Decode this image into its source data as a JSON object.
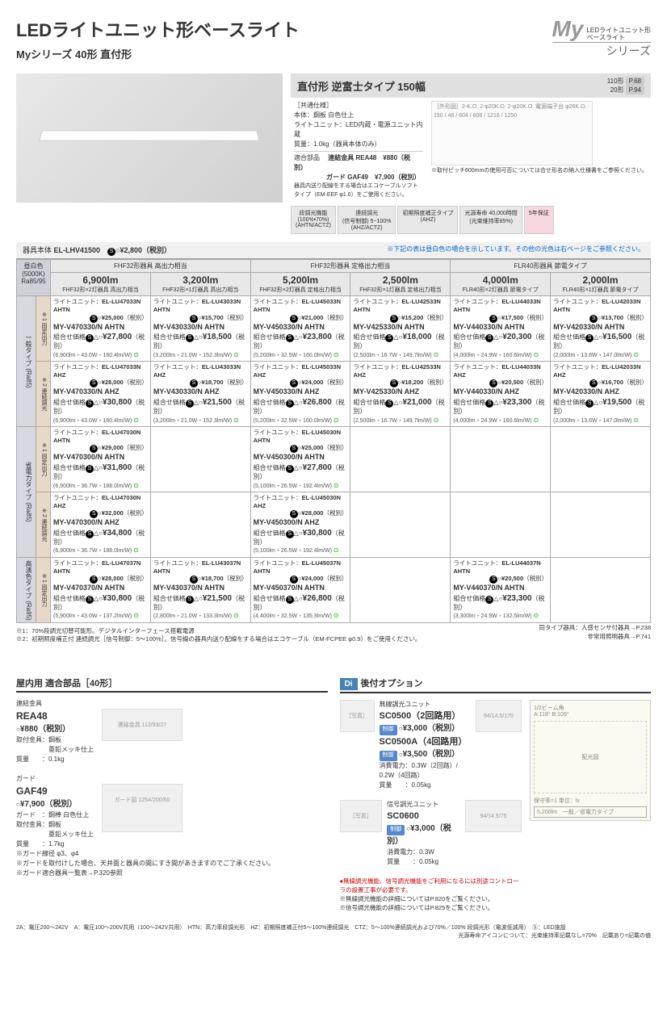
{
  "header": {
    "title": "LEDライトユニット形ベースライト",
    "subtitle": "Myシリーズ 40形 直付形",
    "logo_my": "My",
    "logo_sub1": "LEDライトユニット形",
    "logo_sub2": "ベースライト",
    "logo_series": "シリーズ"
  },
  "spec": {
    "title": "直付形 逆富士タイプ 150幅",
    "ref110": "110形",
    "ref110_page": "P.68",
    "ref20": "20形",
    "ref20_page": "P.94",
    "common_label": "［共通仕様］",
    "body_label": "本体",
    "body_val": "：鋼板 白色仕上",
    "unit_label": "ライトユニット",
    "unit_val": "：LED内蔵・電源ユニット内蔵",
    "mass_label": "質量",
    "mass_val": "：1.0kg（器具本体のみ）",
    "parts_label": "適合部品",
    "parts_val1": "連結金具 REA48",
    "parts_price1": "¥880（税別）",
    "parts_val2": "ガード GAF49",
    "parts_price2": "¥7,900（税別）",
    "wiring_note": "器具内送り配線をする場合はエコケーブルソフトタイプ（EM-EEF φ1.6）をご使用ください。",
    "diagram_note": "※取付ピッチ600mmの使用可否については合せ形名の納入仕様書をご参照ください。",
    "badge1_t": "段調光機能",
    "badge1_s": "(100%•70%)",
    "badge1_n": "(AHTN/ACTZ)",
    "badge2_t": "連続調光",
    "badge2_s": "(信号制御) 5~100%",
    "badge2_n": "(AHZ/ACTZ)",
    "badge3_t": "初期照度補正タイプ",
    "badge3_n": "(AHZ)",
    "badge4_t": "光源寿命 40,000時間",
    "badge4_s": "(光束維持率85%)",
    "badge5": "5年保証"
  },
  "fixture": {
    "label": "器具本体",
    "model": "EL-LHV41500",
    "price": "¥2,800（税別）",
    "notice": "※下記の表は昼白色の場合を示しています。その他の光色は右ページをご参照ください。"
  },
  "table": {
    "color_label": "昼白色 (5000K) Ra85/95",
    "group_headers": [
      "FHF32形器具 高出力相当",
      "FHF32形器具 定格出力相当",
      "FLR40形器具 節電タイプ"
    ],
    "lm_headers": [
      {
        "lm": "6,900lm",
        "sub": "FHF32形×2灯器具 高出力相当"
      },
      {
        "lm": "3,200lm",
        "sub": "FHF32形×1灯器具 高出力相当"
      },
      {
        "lm": "5,200lm",
        "sub": "FHF32形×2灯器具 定格出力相当"
      },
      {
        "lm": "2,500lm",
        "sub": "FHF32形×1灯器具 定格出力相当"
      },
      {
        "lm": "4,000lm",
        "sub": "FLR40形×2灯器具 節電タイプ"
      },
      {
        "lm": "2,000lm",
        "sub": "FLR40形×1灯器具 節電タイプ"
      }
    ],
    "row_types": [
      {
        "type": "一般タイプ (Ra85)",
        "subtypes": [
          "※1 固定出力",
          "※2 連続調光"
        ]
      },
      {
        "type": "省電力タイプ (Ra85)",
        "subtypes": [
          "※1 固定出力",
          "※2 連続調光"
        ]
      },
      {
        "type": "高演色タイプ (Ra95)",
        "subtypes": [
          "※1 固定出力"
        ]
      }
    ],
    "cells": [
      [
        {
          "unit": "EL-LU47033N AHTN",
          "uprice": "¥25,000",
          "model": "MY-V470330/N AHTN",
          "price": "¥27,800",
          "spec": "(6,900lm・43.0W・160.4lm/W)"
        },
        {
          "unit": "EL-LU43033N AHTN",
          "uprice": "¥15,700",
          "model": "MY-V430330/N AHTN",
          "price": "¥18,500",
          "spec": "(3,200lm・21.0W・152.3lm/W)"
        },
        {
          "unit": "EL-LU45033N AHTN",
          "uprice": "¥21,000",
          "model": "MY-V450330/N AHTN",
          "price": "¥23,800",
          "spec": "(5,200lm・32.5W・160.0lm/W)"
        },
        {
          "unit": "EL-LU42533N AHTN",
          "uprice": "¥15,200",
          "model": "MY-V425330/N AHTN",
          "price": "¥18,000",
          "spec": "(2,500lm・16.7W・149.7lm/W)"
        },
        {
          "unit": "EL-LU44033N AHTN",
          "uprice": "¥17,500",
          "model": "MY-V440330/N AHTN",
          "price": "¥20,300",
          "spec": "(4,000lm・24.9W・160.6lm/W)"
        },
        {
          "unit": "EL-LU42033N AHTN",
          "uprice": "¥13,700",
          "model": "MY-V420330/N AHTN",
          "price": "¥16,500",
          "spec": "(2,000lm・13.6W・147.0lm/W)"
        }
      ],
      [
        {
          "unit": "EL-LU47033N AHZ",
          "uprice": "¥28,000",
          "model": "MY-V470330/N AHZ",
          "price": "¥30,800",
          "spec": "(6,900lm・43.0W・160.4lm/W)"
        },
        {
          "unit": "EL-LU43033N AHZ",
          "uprice": "¥18,700",
          "model": "MY-V430330/N AHZ",
          "price": "¥21,500",
          "spec": "(3,200lm・21.0W・152.3lm/W)"
        },
        {
          "unit": "EL-LU45033N AHZ",
          "uprice": "¥24,000",
          "model": "MY-V450330/N AHZ",
          "price": "¥26,800",
          "spec": "(5,200lm・32.5W・160.0lm/W)"
        },
        {
          "unit": "EL-LU42533N AHZ",
          "uprice": "¥18,200",
          "model": "MY-V425330/N AHZ",
          "price": "¥21,000",
          "spec": "(2,500lm・16.7W・149.7lm/W)"
        },
        {
          "unit": "EL-LU44033N AHZ",
          "uprice": "¥20,500",
          "model": "MY-V440330/N AHZ",
          "price": "¥23,300",
          "spec": "(4,000lm・24.9W・160.6lm/W)"
        },
        {
          "unit": "EL-LU42033N AHZ",
          "uprice": "¥16,700",
          "model": "MY-V420330/N AHZ",
          "price": "¥19,500",
          "spec": "(2,000lm・13.6W・147.0lm/W)"
        }
      ],
      [
        {
          "unit": "EL-LU47030N AHTN",
          "uprice": "¥29,000",
          "model": "MY-V470300/N AHTN",
          "price": "¥31,800",
          "spec": "(6,900lm・36.7W・188.0lm/W)"
        },
        null,
        {
          "unit": "EL-LU45030N AHTN",
          "uprice": "¥25,000",
          "model": "MY-V450300/N AHTN",
          "price": "¥27,800",
          "spec": "(5,100lm・26.5W・192.4lm/W)"
        },
        null,
        null,
        null
      ],
      [
        {
          "unit": "EL-LU47030N AHZ",
          "uprice": "¥32,000",
          "model": "MY-V470300/N AHZ",
          "price": "¥34,800",
          "spec": "(6,900lm・36.7W・188.0lm/W)"
        },
        null,
        {
          "unit": "EL-LU45030N AHZ",
          "uprice": "¥28,000",
          "model": "MY-V450300/N AHZ",
          "price": "¥30,800",
          "spec": "(5,100lm・26.5W・192.4lm/W)"
        },
        null,
        null,
        null
      ],
      [
        {
          "unit": "EL-LU47037N AHTN",
          "uprice": "¥28,000",
          "model": "MY-V470370/N AHTN",
          "price": "¥30,800",
          "spec": "(5,900lm・43.0W・137.2lm/W)"
        },
        {
          "unit": "EL-LU43037N AHTN",
          "uprice": "¥18,700",
          "model": "MY-V430370/N AHTN",
          "price": "¥21,500",
          "spec": "(2,800lm・21.0W・133.3lm/W)"
        },
        {
          "unit": "EL-LU45037N AHTN",
          "uprice": "¥24,000",
          "model": "MY-V450370/N AHTN",
          "price": "¥26,800",
          "spec": "(4,400lm・32.5W・135.3lm/W)"
        },
        null,
        {
          "unit": "EL-LU44037N AHTN",
          "uprice": "¥20,500",
          "model": "MY-V440370/N AHTN",
          "price": "¥23,300",
          "spec": "(3,300lm・24.9W・132.5lm/W)"
        },
        null
      ]
    ],
    "labels": {
      "unit_prefix": "ライトユニット：",
      "combo_prefix": "組合せ価格",
      "tax": "（税別）"
    }
  },
  "footnotes": {
    "n1": "※1：70%段調光切替可能形。デジタルインターフェース搭載電源",
    "n2": "※2：初期照度補正付 連続調光［信号制御：5～100%］。信号線の器具内送り配線をする場合はエコケーブル（EM-FCPEE φ0.9）をご使用ください。",
    "r1": "同タイプ器具：人感センサ付器具→P.238",
    "r2": "非常用照明器具→P.741"
  },
  "parts": {
    "header": "屋内用 適合部品［40形］",
    "item1": {
      "label": "連結金具",
      "model": "REA48",
      "price": "¥880（税別）",
      "spec1": "取付金具：鋼板",
      "spec2": "　　　　　亜鉛メッキ仕上",
      "spec3": "質量　　：0.1kg"
    },
    "item2": {
      "label": "ガード",
      "model": "GAF49",
      "price": "¥7,900（税別）",
      "spec1": "ガード　：鋼棒 白色仕上",
      "spec2": "取付金具：鋼板",
      "spec3": "　　　　　亜鉛メッキ仕上",
      "spec4": "質量　　：1.7kg",
      "spec5": "※ガード線径 φ3、φ4",
      "note1": "※ガードを取付けした場合、天井面と器具の間にすき間があきますのでご了承ください。",
      "note2": "※ガード適合器具一覧表→P.320参照"
    }
  },
  "options": {
    "header": "後付オプション",
    "di": "Di",
    "item1": {
      "label": "無線調光ユニット",
      "model1": "SC0500（2回路用）",
      "price1": "¥3,000（税別）",
      "model2": "SC0500A（4回路用）",
      "price2": "¥3,500（税別）",
      "ctrl": "制御",
      "spec1": "消費電力：0.3W（2回路）/ 0.2W（4回路）",
      "spec2": "質量　　：0.05kg"
    },
    "item2": {
      "label": "信号調光ユニット",
      "model": "SC0600",
      "price": "¥3,000（税別）",
      "ctrl": "制御",
      "spec1": "消費電力：0.3W",
      "spec2": "質量　　：0.05kg"
    },
    "warn": "●無線調光機能、信号調光機能をご利用になるには別途コントローラの設置工事が必要です。",
    "note1": "※無線調光機能の詳細についてはP.820をご覧ください。",
    "note2": "※信号調光機能の詳細についてはP.825をご覧ください。",
    "beam": {
      "title": "1/2ビーム角",
      "angles": "A:118° B:109°",
      "unit": "保守率=1  単位：lx",
      "legend": "5,200lm　一般／省電力タイプ"
    }
  },
  "bottom_notes": {
    "line": "2A：電圧200～242V　A：電圧100～200V共用（100～242V共用）　HTN：高力率段調光形　HZ：初期照度補正付5～100%連続調光　CTZ：5～100%連続調光および70%／100% 段調光形（電波低減用）　Ⓢ：LED施設",
    "line2": "光源寿命アイコンについて：光束維持率記載なし=70%　記載あり=記載の値"
  }
}
